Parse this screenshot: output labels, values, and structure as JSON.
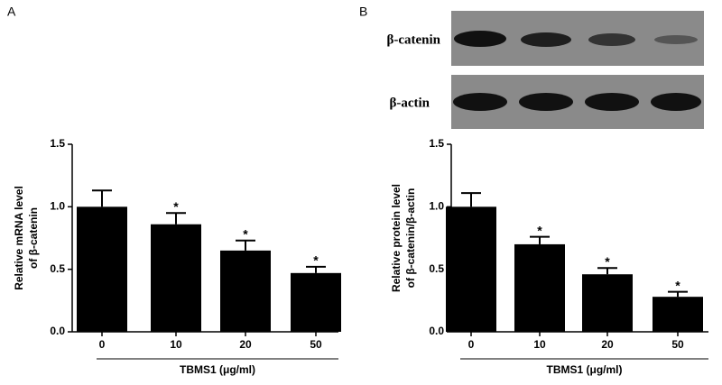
{
  "panels": [
    "A",
    "B"
  ],
  "blot_labels": [
    "β-catenin",
    "β-actin"
  ],
  "chart_data": [
    {
      "type": "bar",
      "ylabel": [
        "Relative mRNA level",
        "of β-catenin"
      ],
      "xlabel": "TBMS1 (μg/ml)",
      "categories": [
        "0",
        "10",
        "20",
        "50"
      ],
      "values": [
        1.0,
        0.86,
        0.65,
        0.47
      ],
      "errors": [
        0.13,
        0.09,
        0.08,
        0.05
      ],
      "annotations": [
        null,
        "*",
        "*",
        "*"
      ],
      "color": "#000000",
      "ylim": [
        0,
        1.5
      ],
      "yticks": [
        {
          "value": 0,
          "label": "0.0"
        },
        {
          "value": 0.5,
          "label": "0.5"
        },
        {
          "value": 1,
          "label": "1.0"
        },
        {
          "value": 1.5,
          "label": "1.5"
        }
      ]
    },
    {
      "type": "bar",
      "ylabel": [
        "Relative protein level",
        "of β-catenin/β-actin"
      ],
      "xlabel": "TBMS1 (μg/ml)",
      "categories": [
        "0",
        "10",
        "20",
        "50"
      ],
      "values": [
        1.0,
        0.7,
        0.46,
        0.28
      ],
      "errors": [
        0.11,
        0.06,
        0.05,
        0.04
      ],
      "annotations": [
        null,
        "*",
        "*",
        "*"
      ],
      "color": "#000000",
      "ylim": [
        0,
        1.5
      ],
      "yticks": [
        {
          "value": 0,
          "label": "0.0"
        },
        {
          "value": 0.5,
          "label": "0.5"
        },
        {
          "value": 1,
          "label": "1.0"
        },
        {
          "value": 1.5,
          "label": "1.5"
        }
      ]
    }
  ]
}
